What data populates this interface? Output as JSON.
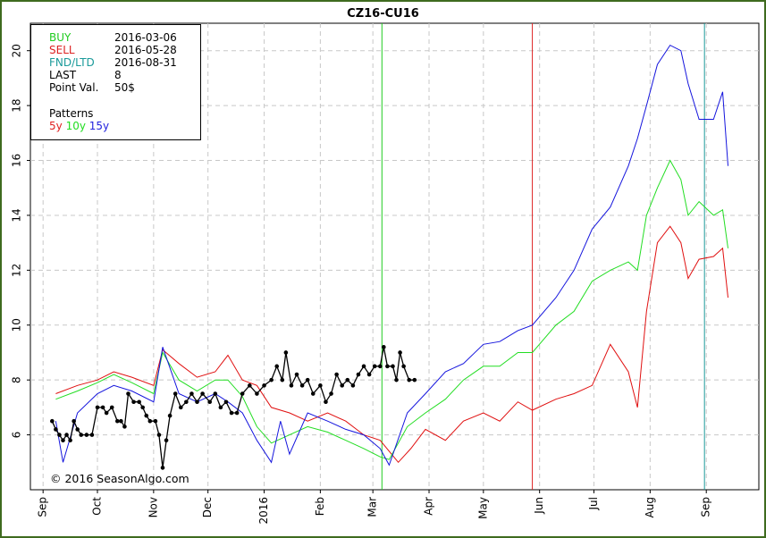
{
  "chart_data": {
    "type": "line",
    "title": "CZ16-CU16",
    "copyright": "© 2016 SeasonAlgo.com",
    "info": {
      "buy_label": "BUY",
      "buy_date": "2016-03-06",
      "sell_label": "SELL",
      "sell_date": "2016-05-28",
      "fnd_label": "FND/LTD",
      "fnd_date": "2016-08-31",
      "last_label": "LAST",
      "last_value": "8",
      "point_label": "Point Val.",
      "point_value": "50$",
      "patterns_label": "Patterns"
    },
    "x_range": [
      "2015-08-25",
      "2016-09-30"
    ],
    "xtick_labels": [
      {
        "label": "Sep",
        "date": "2015-09-01"
      },
      {
        "label": "Oct",
        "date": "2015-10-01"
      },
      {
        "label": "Nov",
        "date": "2015-11-01"
      },
      {
        "label": "Dec",
        "date": "2015-12-01"
      },
      {
        "label": "2016",
        "date": "2016-01-01"
      },
      {
        "label": "Feb",
        "date": "2016-02-01"
      },
      {
        "label": "Mar",
        "date": "2016-03-01"
      },
      {
        "label": "Apr",
        "date": "2016-04-01"
      },
      {
        "label": "May",
        "date": "2016-05-01"
      },
      {
        "label": "Jun",
        "date": "2016-06-01"
      },
      {
        "label": "Jul",
        "date": "2016-07-01"
      },
      {
        "label": "Aug",
        "date": "2016-08-01"
      },
      {
        "label": "Sep",
        "date": "2016-09-01"
      }
    ],
    "ylim": [
      4.0,
      21.0
    ],
    "yticks": [
      6,
      8,
      10,
      12,
      14,
      16,
      18,
      20
    ],
    "grid": true,
    "event_lines": [
      {
        "name": "BUY",
        "date": "2016-03-06",
        "color": "#22cc22"
      },
      {
        "name": "SELL",
        "date": "2016-05-28",
        "color": "#dd2222"
      },
      {
        "name": "FND/LTD",
        "date": "2016-08-31",
        "color": "#1a9a9a"
      }
    ],
    "series": [
      {
        "name": "LAST",
        "color": "#000000",
        "markers": true,
        "points": [
          [
            "2015-09-06",
            6.5
          ],
          [
            "2015-09-08",
            6.2
          ],
          [
            "2015-09-10",
            6.0
          ],
          [
            "2015-09-12",
            5.8
          ],
          [
            "2015-09-14",
            6.0
          ],
          [
            "2015-09-16",
            5.8
          ],
          [
            "2015-09-18",
            6.5
          ],
          [
            "2015-09-20",
            6.2
          ],
          [
            "2015-09-22",
            6.0
          ],
          [
            "2015-09-25",
            6.0
          ],
          [
            "2015-09-28",
            6.0
          ],
          [
            "2015-10-01",
            7.0
          ],
          [
            "2015-10-04",
            7.0
          ],
          [
            "2015-10-06",
            6.8
          ],
          [
            "2015-10-09",
            7.0
          ],
          [
            "2015-10-12",
            6.5
          ],
          [
            "2015-10-14",
            6.5
          ],
          [
            "2015-10-16",
            6.3
          ],
          [
            "2015-10-18",
            7.5
          ],
          [
            "2015-10-21",
            7.2
          ],
          [
            "2015-10-24",
            7.2
          ],
          [
            "2015-10-26",
            7.0
          ],
          [
            "2015-10-28",
            6.7
          ],
          [
            "2015-10-30",
            6.5
          ],
          [
            "2015-11-02",
            6.5
          ],
          [
            "2015-11-04",
            6.0
          ],
          [
            "2015-11-06",
            4.8
          ],
          [
            "2015-11-08",
            5.8
          ],
          [
            "2015-11-10",
            6.7
          ],
          [
            "2015-11-13",
            7.5
          ],
          [
            "2015-11-16",
            7.0
          ],
          [
            "2015-11-19",
            7.2
          ],
          [
            "2015-11-22",
            7.5
          ],
          [
            "2015-11-25",
            7.2
          ],
          [
            "2015-11-28",
            7.5
          ],
          [
            "2015-12-02",
            7.2
          ],
          [
            "2015-12-05",
            7.5
          ],
          [
            "2015-12-08",
            7.0
          ],
          [
            "2015-12-11",
            7.2
          ],
          [
            "2015-12-14",
            6.8
          ],
          [
            "2015-12-17",
            6.8
          ],
          [
            "2015-12-20",
            7.5
          ],
          [
            "2015-12-24",
            7.8
          ],
          [
            "2015-12-28",
            7.5
          ],
          [
            "2016-01-01",
            7.8
          ],
          [
            "2016-01-05",
            8.0
          ],
          [
            "2016-01-08",
            8.5
          ],
          [
            "2016-01-11",
            8.0
          ],
          [
            "2016-01-13",
            9.0
          ],
          [
            "2016-01-16",
            7.8
          ],
          [
            "2016-01-19",
            8.2
          ],
          [
            "2016-01-22",
            7.8
          ],
          [
            "2016-01-25",
            8.0
          ],
          [
            "2016-01-28",
            7.5
          ],
          [
            "2016-02-01",
            7.8
          ],
          [
            "2016-02-04",
            7.2
          ],
          [
            "2016-02-07",
            7.5
          ],
          [
            "2016-02-10",
            8.2
          ],
          [
            "2016-02-13",
            7.8
          ],
          [
            "2016-02-16",
            8.0
          ],
          [
            "2016-02-19",
            7.8
          ],
          [
            "2016-02-22",
            8.2
          ],
          [
            "2016-02-25",
            8.5
          ],
          [
            "2016-02-28",
            8.2
          ],
          [
            "2016-03-02",
            8.5
          ],
          [
            "2016-03-05",
            8.5
          ],
          [
            "2016-03-07",
            9.2
          ],
          [
            "2016-03-09",
            8.5
          ],
          [
            "2016-03-12",
            8.5
          ],
          [
            "2016-03-14",
            8.0
          ],
          [
            "2016-03-16",
            9.0
          ],
          [
            "2016-03-18",
            8.5
          ],
          [
            "2016-03-21",
            8.0
          ],
          [
            "2016-03-24",
            8.0
          ]
        ]
      },
      {
        "name": "5y",
        "color": "#e01010",
        "points": [
          [
            "2015-09-08",
            7.5
          ],
          [
            "2015-09-20",
            7.8
          ],
          [
            "2015-10-01",
            8.0
          ],
          [
            "2015-10-10",
            8.3
          ],
          [
            "2015-10-20",
            8.1
          ],
          [
            "2015-11-01",
            7.8
          ],
          [
            "2015-11-06",
            9.1
          ],
          [
            "2015-11-15",
            8.6
          ],
          [
            "2015-11-25",
            8.1
          ],
          [
            "2015-12-05",
            8.3
          ],
          [
            "2015-12-12",
            8.9
          ],
          [
            "2015-12-20",
            8.0
          ],
          [
            "2015-12-28",
            7.8
          ],
          [
            "2016-01-05",
            7.0
          ],
          [
            "2016-01-15",
            6.8
          ],
          [
            "2016-01-25",
            6.5
          ],
          [
            "2016-02-05",
            6.8
          ],
          [
            "2016-02-15",
            6.5
          ],
          [
            "2016-02-25",
            6.0
          ],
          [
            "2016-03-05",
            5.8
          ],
          [
            "2016-03-15",
            5.0
          ],
          [
            "2016-03-22",
            5.5
          ],
          [
            "2016-03-30",
            6.2
          ],
          [
            "2016-04-10",
            5.8
          ],
          [
            "2016-04-20",
            6.5
          ],
          [
            "2016-05-01",
            6.8
          ],
          [
            "2016-05-10",
            6.5
          ],
          [
            "2016-05-20",
            7.2
          ],
          [
            "2016-05-28",
            6.9
          ],
          [
            "2016-06-10",
            7.3
          ],
          [
            "2016-06-20",
            7.5
          ],
          [
            "2016-06-30",
            7.8
          ],
          [
            "2016-07-10",
            9.3
          ],
          [
            "2016-07-20",
            8.3
          ],
          [
            "2016-07-25",
            7.0
          ],
          [
            "2016-07-30",
            10.5
          ],
          [
            "2016-08-05",
            13.0
          ],
          [
            "2016-08-12",
            13.6
          ],
          [
            "2016-08-18",
            13.0
          ],
          [
            "2016-08-22",
            11.7
          ],
          [
            "2016-08-28",
            12.4
          ],
          [
            "2016-09-05",
            12.5
          ],
          [
            "2016-09-10",
            12.8
          ],
          [
            "2016-09-13",
            11.0
          ]
        ]
      },
      {
        "name": "10y",
        "color": "#22dd22",
        "points": [
          [
            "2015-09-08",
            7.3
          ],
          [
            "2015-09-20",
            7.6
          ],
          [
            "2015-10-01",
            7.9
          ],
          [
            "2015-10-10",
            8.2
          ],
          [
            "2015-10-20",
            7.9
          ],
          [
            "2015-11-01",
            7.5
          ],
          [
            "2015-11-06",
            9.0
          ],
          [
            "2015-11-15",
            8.0
          ],
          [
            "2015-11-25",
            7.6
          ],
          [
            "2015-12-05",
            8.0
          ],
          [
            "2015-12-12",
            8.0
          ],
          [
            "2015-12-20",
            7.4
          ],
          [
            "2015-12-28",
            6.3
          ],
          [
            "2016-01-05",
            5.7
          ],
          [
            "2016-01-15",
            6.0
          ],
          [
            "2016-01-25",
            6.3
          ],
          [
            "2016-02-05",
            6.1
          ],
          [
            "2016-02-15",
            5.8
          ],
          [
            "2016-02-25",
            5.5
          ],
          [
            "2016-03-05",
            5.2
          ],
          [
            "2016-03-10",
            5.1
          ],
          [
            "2016-03-20",
            6.3
          ],
          [
            "2016-03-30",
            6.8
          ],
          [
            "2016-04-10",
            7.3
          ],
          [
            "2016-04-20",
            8.0
          ],
          [
            "2016-05-01",
            8.5
          ],
          [
            "2016-05-10",
            8.5
          ],
          [
            "2016-05-20",
            9.0
          ],
          [
            "2016-05-28",
            9.0
          ],
          [
            "2016-06-10",
            10.0
          ],
          [
            "2016-06-20",
            10.5
          ],
          [
            "2016-06-30",
            11.6
          ],
          [
            "2016-07-10",
            12.0
          ],
          [
            "2016-07-20",
            12.3
          ],
          [
            "2016-07-25",
            12.0
          ],
          [
            "2016-07-30",
            14.0
          ],
          [
            "2016-08-05",
            15.0
          ],
          [
            "2016-08-12",
            16.0
          ],
          [
            "2016-08-18",
            15.3
          ],
          [
            "2016-08-22",
            14.0
          ],
          [
            "2016-08-28",
            14.5
          ],
          [
            "2016-09-05",
            14.0
          ],
          [
            "2016-09-10",
            14.2
          ],
          [
            "2016-09-13",
            12.8
          ]
        ]
      },
      {
        "name": "15y",
        "color": "#1515dd",
        "points": [
          [
            "2015-09-08",
            6.5
          ],
          [
            "2015-09-12",
            5.0
          ],
          [
            "2015-09-20",
            6.8
          ],
          [
            "2015-10-01",
            7.5
          ],
          [
            "2015-10-10",
            7.8
          ],
          [
            "2015-10-20",
            7.6
          ],
          [
            "2015-11-01",
            7.2
          ],
          [
            "2015-11-06",
            9.2
          ],
          [
            "2015-11-15",
            7.5
          ],
          [
            "2015-11-25",
            7.2
          ],
          [
            "2015-12-05",
            7.5
          ],
          [
            "2015-12-12",
            7.2
          ],
          [
            "2015-12-20",
            6.8
          ],
          [
            "2015-12-28",
            5.8
          ],
          [
            "2016-01-05",
            5.0
          ],
          [
            "2016-01-10",
            6.5
          ],
          [
            "2016-01-15",
            5.3
          ],
          [
            "2016-01-25",
            6.8
          ],
          [
            "2016-02-05",
            6.5
          ],
          [
            "2016-02-15",
            6.2
          ],
          [
            "2016-02-25",
            6.0
          ],
          [
            "2016-03-05",
            5.5
          ],
          [
            "2016-03-10",
            4.9
          ],
          [
            "2016-03-20",
            6.8
          ],
          [
            "2016-03-30",
            7.5
          ],
          [
            "2016-04-10",
            8.3
          ],
          [
            "2016-04-20",
            8.6
          ],
          [
            "2016-05-01",
            9.3
          ],
          [
            "2016-05-10",
            9.4
          ],
          [
            "2016-05-20",
            9.8
          ],
          [
            "2016-05-28",
            10.0
          ],
          [
            "2016-06-10",
            11.0
          ],
          [
            "2016-06-20",
            12.0
          ],
          [
            "2016-06-30",
            13.5
          ],
          [
            "2016-07-10",
            14.3
          ],
          [
            "2016-07-20",
            15.8
          ],
          [
            "2016-07-25",
            16.8
          ],
          [
            "2016-07-30",
            18.0
          ],
          [
            "2016-08-05",
            19.5
          ],
          [
            "2016-08-12",
            20.2
          ],
          [
            "2016-08-18",
            20.0
          ],
          [
            "2016-08-22",
            18.8
          ],
          [
            "2016-08-28",
            17.5
          ],
          [
            "2016-09-05",
            17.5
          ],
          [
            "2016-09-10",
            18.5
          ],
          [
            "2016-09-13",
            15.8
          ]
        ]
      }
    ]
  }
}
